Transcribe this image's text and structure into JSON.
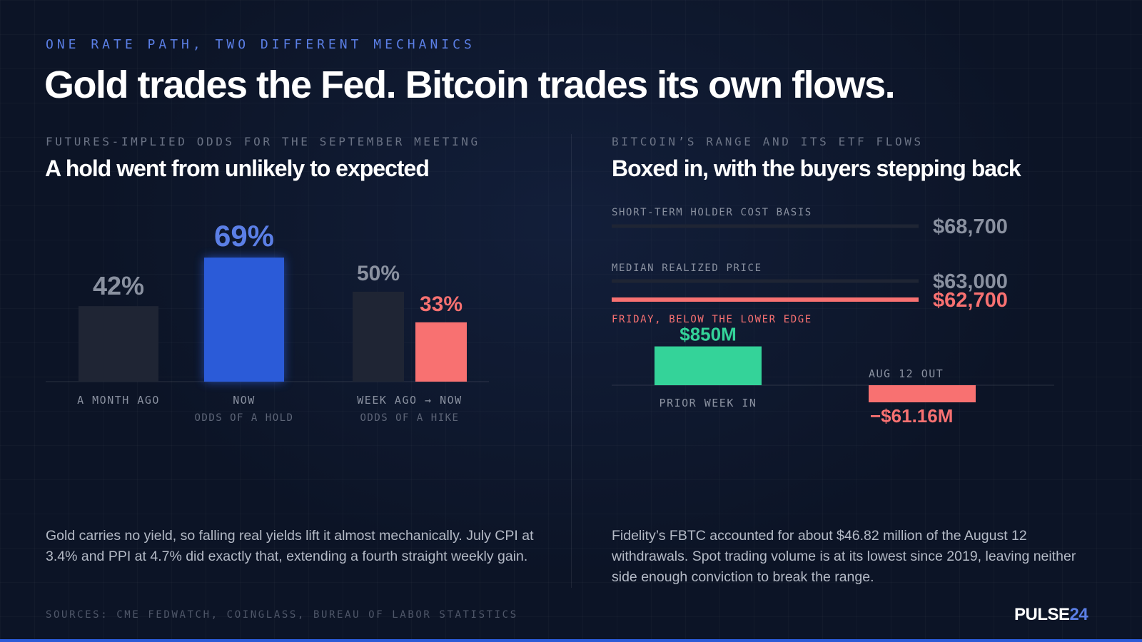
{
  "kicker": "ONE RATE PATH, TWO DIFFERENT MECHANICS",
  "headline": "Gold trades the Fed. Bitcoin trades its own flows.",
  "left": {
    "label": "FUTURES-IMPLIED ODDS FOR THE SEPTEMBER MEETING",
    "title": "A hold went from unlikely to expected",
    "paragraph": "Gold carries no yield, so falling real yields lift it almost mechanically. July CPI at 3.4% and PPI at 4.7% did exactly that, extending a fourth straight weekly gain."
  },
  "right": {
    "label": "BITCOIN’S RANGE AND ITS ETF FLOWS",
    "title": "Boxed in, with the buyers stepping back",
    "paragraph": "Fidelity’s FBTC accounted for about $46.82 million of the August 12 withdrawals. Spot trading volume is at its lowest since 2019, leaving neither side enough conviction to break the range."
  },
  "sources": "SOURCES: CME FEDWATCH, COINGLASS, BUREAU OF LABOR STATISTICS",
  "brand": {
    "name": "PULSE",
    "number": "24"
  },
  "colors": {
    "blue": "#2b5bd8",
    "blue_text": "#5b7fe6",
    "red": "#f87171",
    "green": "#34d399",
    "muted_bar": "#1f2534",
    "grey_text": "#8a91a0"
  },
  "chart_data": [
    {
      "type": "bar",
      "groups": [
        {
          "label": "A MONTH AGO",
          "sublabel": "",
          "bars": [
            {
              "value": 42,
              "display": "42%",
              "color": "#1f2534",
              "label_color": "#8a91a0"
            }
          ]
        },
        {
          "label": "NOW",
          "sublabel": "ODDS OF A HOLD",
          "bars": [
            {
              "value": 69,
              "display": "69%",
              "color": "#2b5bd8",
              "label_color": "#5b7fe6"
            }
          ]
        },
        {
          "label": "WEEK AGO → NOW",
          "sublabel": "ODDS OF A HIKE",
          "bars": [
            {
              "value": 50,
              "display": "50%",
              "color": "#1f2534",
              "label_color": "#8a91a0"
            },
            {
              "value": 33,
              "display": "33%",
              "color": "#f87171",
              "label_color": "#f87171"
            }
          ]
        }
      ],
      "ylim": [
        0,
        100
      ]
    },
    {
      "type": "bar",
      "levels": [
        {
          "label": "SHORT-TERM HOLDER COST BASIS",
          "value": 68700,
          "display": "$68,700",
          "color": "#1f2534",
          "label_color": "#8a91a0"
        },
        {
          "label": "MEDIAN REALIZED PRICE",
          "value": 63000,
          "display": "$63,000",
          "color": "#1f2534",
          "label_color": "#8a91a0"
        },
        {
          "label": "FRIDAY, BELOW THE LOWER EDGE",
          "value": 62700,
          "display": "$62,700",
          "color": "#f87171",
          "label_color": "#f87171"
        }
      ],
      "flows": [
        {
          "label": "PRIOR WEEK IN",
          "value": 850,
          "display": "$850M",
          "color": "#34d399"
        },
        {
          "label": "AUG 12 OUT",
          "value": -61.16,
          "display": "−$61.16M",
          "color": "#f87171"
        }
      ],
      "units": "USD millions"
    }
  ]
}
